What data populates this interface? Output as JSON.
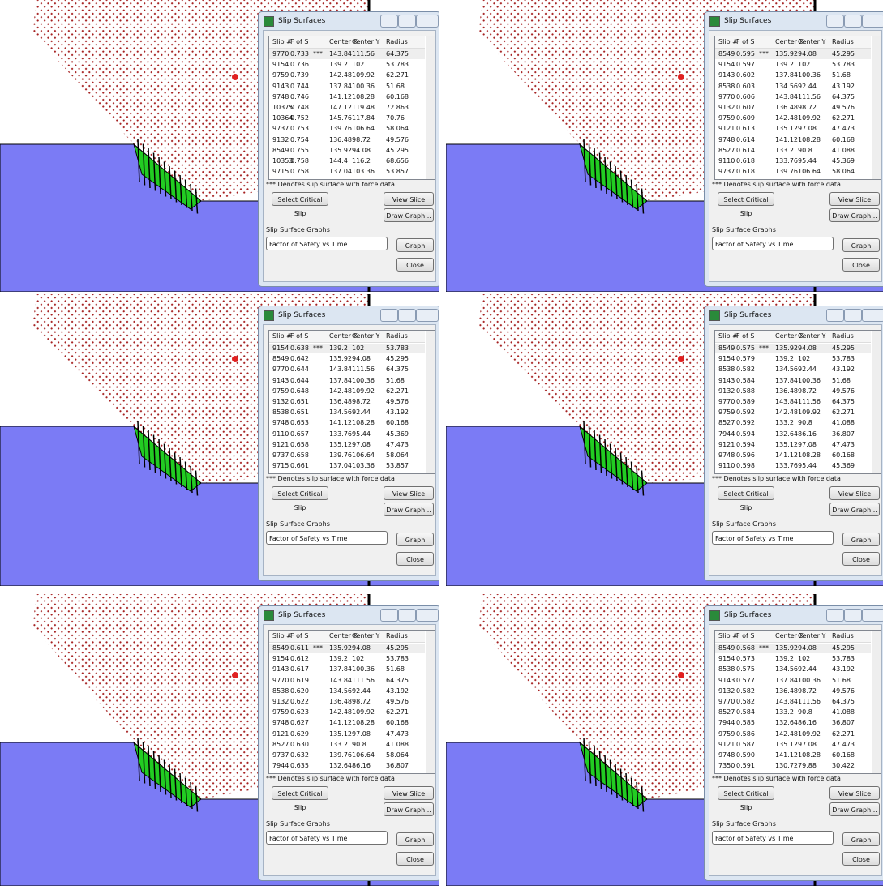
{
  "dialog": {
    "title": "Slip Surfaces",
    "headers": [
      "Slip #",
      "F of S",
      "Center X",
      "Center Y",
      "Radius"
    ],
    "note": "*** Denotes slip surface with force data",
    "select": "Select Critical Slip",
    "view": "View Slice Info...",
    "draw": "Draw Graph...",
    "group": "Slip Surface Graphs",
    "dropdown": "Factor of Safety vs Time",
    "graph": "Graph",
    "close": "Close"
  },
  "panels": [
    {
      "flag": "***",
      "rows": [
        [
          "9770",
          "0.733",
          "143.84",
          "111.56",
          "64.375"
        ],
        [
          "9154",
          "0.736",
          "139.2",
          "102",
          "53.783"
        ],
        [
          "9759",
          "0.739",
          "142.48",
          "109.92",
          "62.271"
        ],
        [
          "9143",
          "0.744",
          "137.84",
          "100.36",
          "51.68"
        ],
        [
          "9748",
          "0.746",
          "141.12",
          "108.28",
          "60.168"
        ],
        [
          "10375",
          "0.748",
          "147.12",
          "119.48",
          "72.863"
        ],
        [
          "10364",
          "0.752",
          "145.76",
          "117.84",
          "70.76"
        ],
        [
          "9737",
          "0.753",
          "139.76",
          "106.64",
          "58.064"
        ],
        [
          "9132",
          "0.754",
          "136.48",
          "98.72",
          "49.576"
        ],
        [
          "8549",
          "0.755",
          "135.92",
          "94.08",
          "45.295"
        ],
        [
          "10353",
          "0.758",
          "144.4",
          "116.2",
          "68.656"
        ],
        [
          "9715",
          "0.758",
          "137.04",
          "103.36",
          "53.857"
        ]
      ]
    },
    {
      "flag": "***",
      "rows": [
        [
          "8549",
          "0.595",
          "135.92",
          "94.08",
          "45.295"
        ],
        [
          "9154",
          "0.597",
          "139.2",
          "102",
          "53.783"
        ],
        [
          "9143",
          "0.602",
          "137.84",
          "100.36",
          "51.68"
        ],
        [
          "8538",
          "0.603",
          "134.56",
          "92.44",
          "43.192"
        ],
        [
          "9770",
          "0.606",
          "143.84",
          "111.56",
          "64.375"
        ],
        [
          "9132",
          "0.607",
          "136.48",
          "98.72",
          "49.576"
        ],
        [
          "9759",
          "0.609",
          "142.48",
          "109.92",
          "62.271"
        ],
        [
          "9121",
          "0.613",
          "135.12",
          "97.08",
          "47.473"
        ],
        [
          "9748",
          "0.614",
          "141.12",
          "108.28",
          "60.168"
        ],
        [
          "8527",
          "0.614",
          "133.2",
          "90.8",
          "41.088"
        ],
        [
          "9110",
          "0.618",
          "133.76",
          "95.44",
          "45.369"
        ],
        [
          "9737",
          "0.618",
          "139.76",
          "106.64",
          "58.064"
        ]
      ]
    },
    {
      "flag": "***",
      "rows": [
        [
          "9154",
          "0.638",
          "139.2",
          "102",
          "53.783"
        ],
        [
          "8549",
          "0.642",
          "135.92",
          "94.08",
          "45.295"
        ],
        [
          "9770",
          "0.644",
          "143.84",
          "111.56",
          "64.375"
        ],
        [
          "9143",
          "0.644",
          "137.84",
          "100.36",
          "51.68"
        ],
        [
          "9759",
          "0.648",
          "142.48",
          "109.92",
          "62.271"
        ],
        [
          "9132",
          "0.651",
          "136.48",
          "98.72",
          "49.576"
        ],
        [
          "8538",
          "0.651",
          "134.56",
          "92.44",
          "43.192"
        ],
        [
          "9748",
          "0.653",
          "141.12",
          "108.28",
          "60.168"
        ],
        [
          "9110",
          "0.657",
          "133.76",
          "95.44",
          "45.369"
        ],
        [
          "9121",
          "0.658",
          "135.12",
          "97.08",
          "47.473"
        ],
        [
          "9737",
          "0.658",
          "139.76",
          "106.64",
          "58.064"
        ],
        [
          "9715",
          "0.661",
          "137.04",
          "103.36",
          "53.857"
        ]
      ]
    },
    {
      "flag": "***",
      "rows": [
        [
          "8549",
          "0.575",
          "135.92",
          "94.08",
          "45.295"
        ],
        [
          "9154",
          "0.579",
          "139.2",
          "102",
          "53.783"
        ],
        [
          "8538",
          "0.582",
          "134.56",
          "92.44",
          "43.192"
        ],
        [
          "9143",
          "0.584",
          "137.84",
          "100.36",
          "51.68"
        ],
        [
          "9132",
          "0.588",
          "136.48",
          "98.72",
          "49.576"
        ],
        [
          "9770",
          "0.589",
          "143.84",
          "111.56",
          "64.375"
        ],
        [
          "9759",
          "0.592",
          "142.48",
          "109.92",
          "62.271"
        ],
        [
          "8527",
          "0.592",
          "133.2",
          "90.8",
          "41.088"
        ],
        [
          "7944",
          "0.594",
          "132.64",
          "86.16",
          "36.807"
        ],
        [
          "9121",
          "0.594",
          "135.12",
          "97.08",
          "47.473"
        ],
        [
          "9748",
          "0.596",
          "141.12",
          "108.28",
          "60.168"
        ],
        [
          "9110",
          "0.598",
          "133.76",
          "95.44",
          "45.369"
        ]
      ]
    },
    {
      "flag": "***",
      "rows": [
        [
          "8549",
          "0.611",
          "135.92",
          "94.08",
          "45.295"
        ],
        [
          "9154",
          "0.612",
          "139.2",
          "102",
          "53.783"
        ],
        [
          "9143",
          "0.617",
          "137.84",
          "100.36",
          "51.68"
        ],
        [
          "9770",
          "0.619",
          "143.84",
          "111.56",
          "64.375"
        ],
        [
          "8538",
          "0.620",
          "134.56",
          "92.44",
          "43.192"
        ],
        [
          "9132",
          "0.622",
          "136.48",
          "98.72",
          "49.576"
        ],
        [
          "9759",
          "0.623",
          "142.48",
          "109.92",
          "62.271"
        ],
        [
          "9748",
          "0.627",
          "141.12",
          "108.28",
          "60.168"
        ],
        [
          "9121",
          "0.629",
          "135.12",
          "97.08",
          "47.473"
        ],
        [
          "8527",
          "0.630",
          "133.2",
          "90.8",
          "41.088"
        ],
        [
          "9737",
          "0.632",
          "139.76",
          "106.64",
          "58.064"
        ],
        [
          "7944",
          "0.635",
          "132.64",
          "86.16",
          "36.807"
        ]
      ]
    },
    {
      "flag": "***",
      "rows": [
        [
          "8549",
          "0.568",
          "135.92",
          "94.08",
          "45.295"
        ],
        [
          "9154",
          "0.573",
          "139.2",
          "102",
          "53.783"
        ],
        [
          "8538",
          "0.575",
          "134.56",
          "92.44",
          "43.192"
        ],
        [
          "9143",
          "0.577",
          "137.84",
          "100.36",
          "51.68"
        ],
        [
          "9132",
          "0.582",
          "136.48",
          "98.72",
          "49.576"
        ],
        [
          "9770",
          "0.582",
          "143.84",
          "111.56",
          "64.375"
        ],
        [
          "8527",
          "0.584",
          "133.2",
          "90.8",
          "41.088"
        ],
        [
          "7944",
          "0.585",
          "132.64",
          "86.16",
          "36.807"
        ],
        [
          "9759",
          "0.586",
          "142.48",
          "109.92",
          "62.271"
        ],
        [
          "9121",
          "0.587",
          "135.12",
          "97.08",
          "47.473"
        ],
        [
          "9748",
          "0.590",
          "141.12",
          "108.28",
          "60.168"
        ],
        [
          "7350",
          "0.591",
          "130.72",
          "79.88",
          "30.422"
        ]
      ]
    }
  ]
}
